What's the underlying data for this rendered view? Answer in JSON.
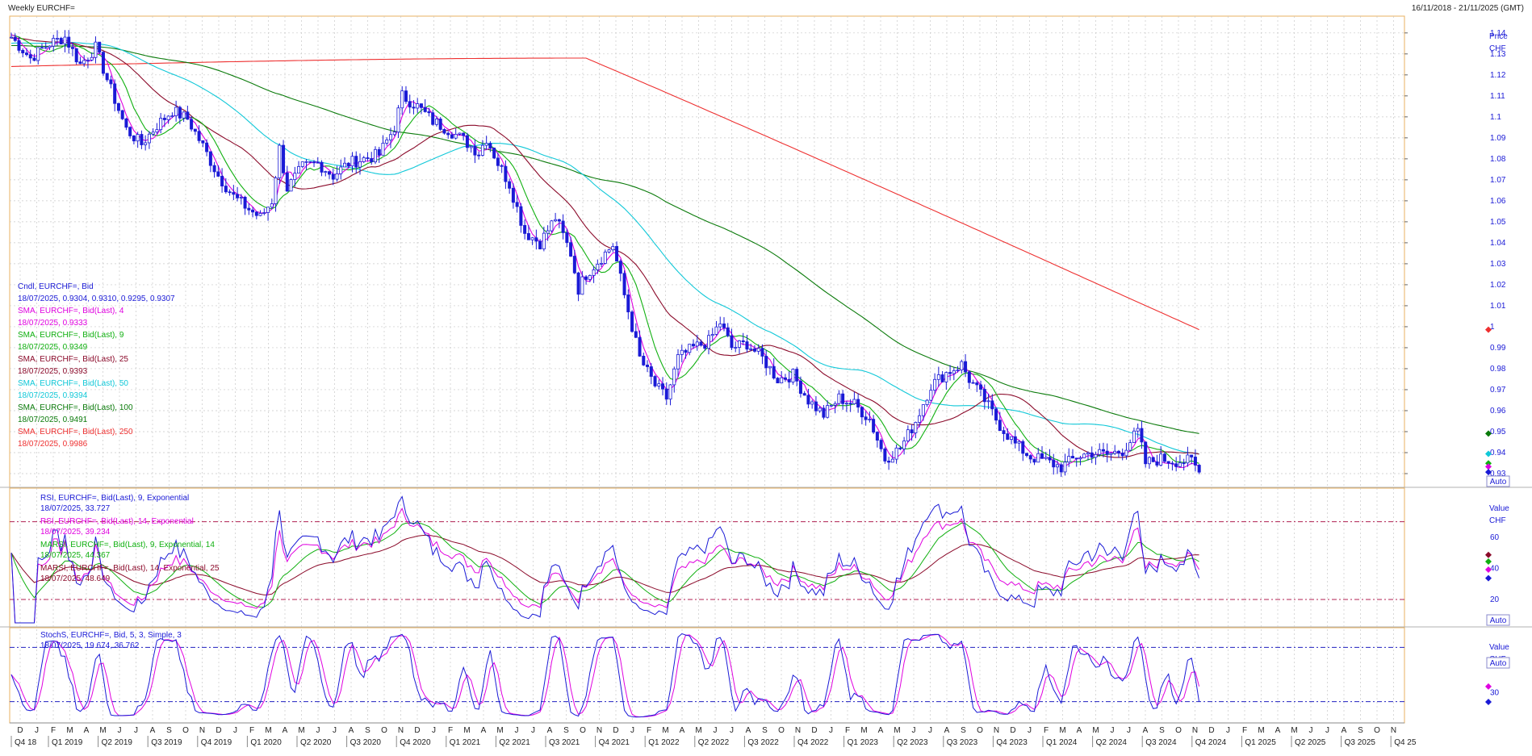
{
  "header": {
    "title": "Weekly EURCHF=",
    "date_range": "16/11/2018 - 21/11/2025 (GMT)"
  },
  "colors": {
    "candle": "#1a1ad6",
    "sma4": "#e000e0",
    "sma9": "#10b010",
    "sma25": "#8b0a2a",
    "sma50": "#10c8d8",
    "sma100": "#0a7a0a",
    "sma250": "#ee3030",
    "stoch_d": "#e000e0",
    "grid": "#c8c8c8",
    "frame": "#e8b060"
  },
  "chart_data": [
    {
      "type": "line",
      "title": "Weekly EURCHF=",
      "y_unit_label": "Price",
      "y_currency": "CHF",
      "auto_label": "Auto",
      "ylim": [
        0.925,
        1.148
      ],
      "y_ticks": [
        "1.14",
        "1.13",
        "1.12",
        "1.11",
        "1.1",
        "1.09",
        "1.08",
        "1.07",
        "1.06",
        "1.05",
        "1.04",
        "1.03",
        "1.02",
        "1.01",
        "1",
        "0.99",
        "0.98",
        "0.97",
        "0.96",
        "0.95",
        "0.94",
        "0.93"
      ],
      "candles_ohlc_note": "18/07/2025, 0.9304, 0.9310, 0.9295, 0.9307",
      "x_months": [
        "D",
        "J",
        "F",
        "M",
        "A",
        "M",
        "J",
        "J",
        "A",
        "S",
        "O",
        "N",
        "D",
        "J",
        "F",
        "M",
        "A",
        "M",
        "J",
        "J",
        "A",
        "S",
        "O",
        "N",
        "D",
        "J",
        "F",
        "M",
        "A",
        "M",
        "J",
        "J",
        "A",
        "S",
        "O",
        "N",
        "D",
        "J",
        "F",
        "M",
        "A",
        "M",
        "J",
        "J",
        "A",
        "S",
        "O",
        "N",
        "D",
        "J",
        "F",
        "M",
        "A",
        "M",
        "J",
        "J",
        "A",
        "S",
        "O",
        "N",
        "D",
        "J",
        "F",
        "M",
        "A",
        "M",
        "J",
        "J",
        "A",
        "S",
        "O",
        "N",
        "D",
        "J",
        "F",
        "M",
        "A",
        "M",
        "J",
        "J",
        "A",
        "S",
        "O",
        "N"
      ],
      "x_quarters": [
        "Q4 18",
        "Q1 2019",
        "Q2 2019",
        "Q3 2019",
        "Q4 2019",
        "Q1 2020",
        "Q2 2020",
        "Q3 2020",
        "Q4 2020",
        "Q1 2021",
        "Q2 2021",
        "Q3 2021",
        "Q4 2021",
        "Q1 2022",
        "Q2 2022",
        "Q3 2022",
        "Q4 2022",
        "Q1 2023",
        "Q2 2023",
        "Q3 2023",
        "Q4 2023",
        "Q1 2024",
        "Q2 2024",
        "Q3 2024",
        "Q4 2024",
        "Q1 2025",
        "Q2 2025",
        "Q3 2025",
        "Q4 25"
      ],
      "price_anchors": [
        [
          0,
          1.138
        ],
        [
          5,
          1.128
        ],
        [
          10,
          1.135
        ],
        [
          14,
          1.138
        ],
        [
          18,
          1.125
        ],
        [
          22,
          1.133
        ],
        [
          26,
          1.113
        ],
        [
          30,
          1.094
        ],
        [
          34,
          1.087
        ],
        [
          38,
          1.096
        ],
        [
          42,
          1.103
        ],
        [
          46,
          1.099
        ],
        [
          50,
          1.086
        ],
        [
          54,
          1.072
        ],
        [
          58,
          1.062
        ],
        [
          62,
          1.056
        ],
        [
          65,
          1.052
        ],
        [
          68,
          1.06
        ],
        [
          70,
          1.085
        ],
        [
          72,
          1.066
        ],
        [
          76,
          1.076
        ],
        [
          80,
          1.078
        ],
        [
          84,
          1.072
        ],
        [
          88,
          1.078
        ],
        [
          92,
          1.08
        ],
        [
          96,
          1.082
        ],
        [
          100,
          1.095
        ],
        [
          102,
          1.11
        ],
        [
          106,
          1.105
        ],
        [
          110,
          1.098
        ],
        [
          114,
          1.094
        ],
        [
          118,
          1.089
        ],
        [
          122,
          1.083
        ],
        [
          124,
          1.09
        ],
        [
          127,
          1.078
        ],
        [
          130,
          1.068
        ],
        [
          134,
          1.045
        ],
        [
          138,
          1.04
        ],
        [
          142,
          1.052
        ],
        [
          146,
          1.035
        ],
        [
          148,
          1.018
        ],
        [
          150,
          1.025
        ],
        [
          154,
          1.033
        ],
        [
          157,
          1.039
        ],
        [
          160,
          1.015
        ],
        [
          164,
          0.985
        ],
        [
          168,
          0.972
        ],
        [
          171,
          0.966
        ],
        [
          174,
          0.985
        ],
        [
          178,
          0.99
        ],
        [
          182,
          0.993
        ],
        [
          185,
          1.002
        ],
        [
          188,
          0.99
        ],
        [
          192,
          0.992
        ],
        [
          196,
          0.985
        ],
        [
          200,
          0.975
        ],
        [
          204,
          0.977
        ],
        [
          208,
          0.965
        ],
        [
          212,
          0.958
        ],
        [
          216,
          0.966
        ],
        [
          220,
          0.963
        ],
        [
          224,
          0.956
        ],
        [
          228,
          0.937
        ],
        [
          232,
          0.942
        ],
        [
          236,
          0.955
        ],
        [
          240,
          0.972
        ],
        [
          244,
          0.978
        ],
        [
          248,
          0.982
        ],
        [
          250,
          0.975
        ],
        [
          254,
          0.965
        ],
        [
          258,
          0.953
        ],
        [
          262,
          0.944
        ],
        [
          266,
          0.938
        ],
        [
          270,
          0.936
        ],
        [
          274,
          0.933
        ],
        [
          278,
          0.938
        ],
        [
          282,
          0.94
        ],
        [
          286,
          0.939
        ],
        [
          290,
          0.941
        ],
        [
          294,
          0.95
        ],
        [
          296,
          0.935
        ],
        [
          300,
          0.937
        ],
        [
          304,
          0.936
        ],
        [
          308,
          0.936
        ],
        [
          310,
          0.9307
        ]
      ],
      "series": [
        {
          "label": "Cndl, EURCHF=, Bid",
          "value_line": "18/07/2025, 0.9304, 0.9310, 0.9295, 0.9307",
          "value": 0.9307
        },
        {
          "label": "SMA, EURCHF=, Bid(Last),  4",
          "value_line": "18/07/2025, 0.9333",
          "value": 0.9333
        },
        {
          "label": "SMA, EURCHF=, Bid(Last),  9",
          "value_line": "18/07/2025, 0.9349",
          "value": 0.9349
        },
        {
          "label": "SMA, EURCHF=, Bid(Last),  25",
          "value_line": "18/07/2025, 0.9393",
          "value": 0.9393
        },
        {
          "label": "SMA, EURCHF=, Bid(Last),  50",
          "value_line": "18/07/2025, 0.9394",
          "value": 0.9394
        },
        {
          "label": "SMA, EURCHF=, Bid(Last),  100",
          "value_line": "18/07/2025, 0.9491",
          "value": 0.9491
        },
        {
          "label": "SMA, EURCHF=, Bid(Last),  250",
          "value_line": "18/07/2025, 0.9986",
          "value": 0.9986
        }
      ]
    },
    {
      "type": "line",
      "y_unit_label": "Value",
      "y_currency": "CHF",
      "auto_label": "Auto",
      "ylim": [
        5,
        90
      ],
      "y_ticks": [
        "60",
        "40",
        "20"
      ],
      "ref_lines": [
        70,
        20
      ],
      "series": [
        {
          "label": "RSI, EURCHF=, Bid(Last),  9, Exponential",
          "value_line": "18/07/2025, 33.727",
          "value": 33.727
        },
        {
          "label": "RSI, EURCHF=, Bid(Last),  14, Exponential",
          "value_line": "18/07/2025, 39.234",
          "value": 39.234
        },
        {
          "label": "MARSI, EURCHF=, Bid(Last),  9, Exponential, 14",
          "value_line": "18/07/2025, 44.367",
          "value": 44.367
        },
        {
          "label": "MARSI, EURCHF=, Bid(Last),  14, Exponential, 25",
          "value_line": "18/07/2025, 48.649",
          "value": 48.649
        }
      ]
    },
    {
      "type": "line",
      "y_unit_label": "Value",
      "y_currency": "CHF",
      "auto_label": "Auto",
      "ylim": [
        0,
        100
      ],
      "y_ticks": [
        "60",
        "30"
      ],
      "ref_lines": [
        80,
        20
      ],
      "series": [
        {
          "label": "StochS, EURCHF=, Bid,  5, 3, Simple, 3",
          "value_line": "18/07/2025, 19.674, 36.762",
          "values": [
            19.674,
            36.762
          ]
        }
      ]
    }
  ]
}
